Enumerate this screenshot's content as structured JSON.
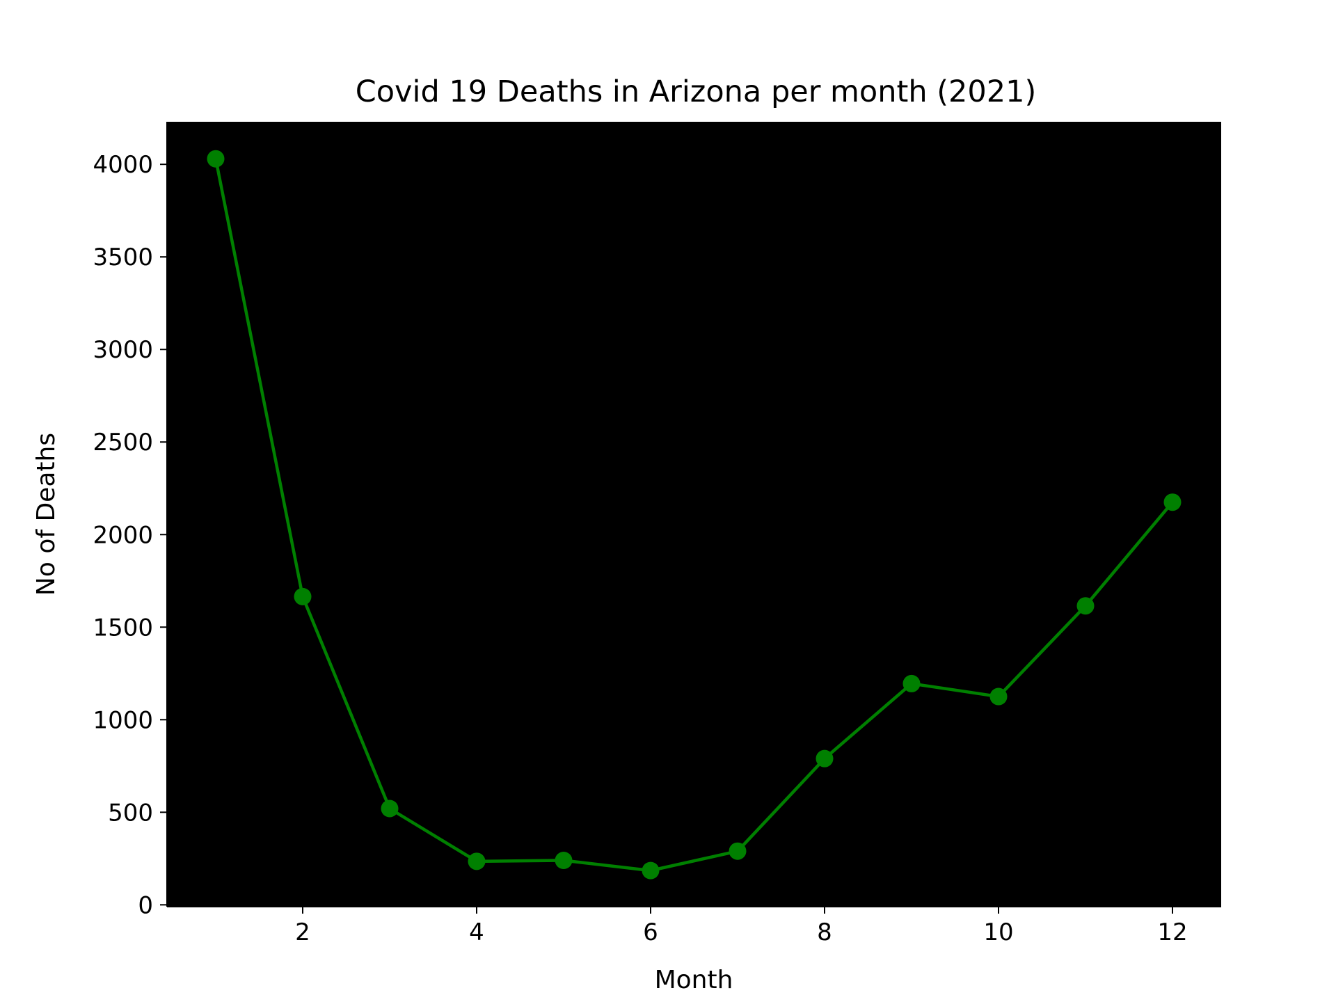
{
  "chart_data": {
    "type": "line",
    "title": "Covid 19 Deaths in Arizona per month (2021)",
    "xlabel": "Month",
    "ylabel": "No of Deaths",
    "x": [
      1,
      2,
      3,
      4,
      5,
      6,
      7,
      8,
      9,
      10,
      11,
      12
    ],
    "values": [
      4030,
      1665,
      520,
      235,
      240,
      185,
      290,
      790,
      1195,
      1125,
      1615,
      2175
    ],
    "xlim": [
      0.44,
      12.56
    ],
    "ylim": [
      -10,
      4230
    ],
    "x_ticks": [
      2,
      4,
      6,
      8,
      10,
      12
    ],
    "x_tick_labels": [
      "2",
      "4",
      "6",
      "8",
      "10",
      "12"
    ],
    "y_ticks": [
      0,
      500,
      1000,
      1500,
      2000,
      2500,
      3000,
      3500,
      4000
    ],
    "y_tick_labels": [
      "0",
      "500",
      "1000",
      "1500",
      "2000",
      "2500",
      "3000",
      "3500",
      "4000"
    ],
    "grid": false,
    "legend": "none",
    "colors": {
      "line": "#008000",
      "marker": "#008000",
      "plot_background": "#000000",
      "figure_background": "#ffffff",
      "text": "#000000"
    }
  }
}
